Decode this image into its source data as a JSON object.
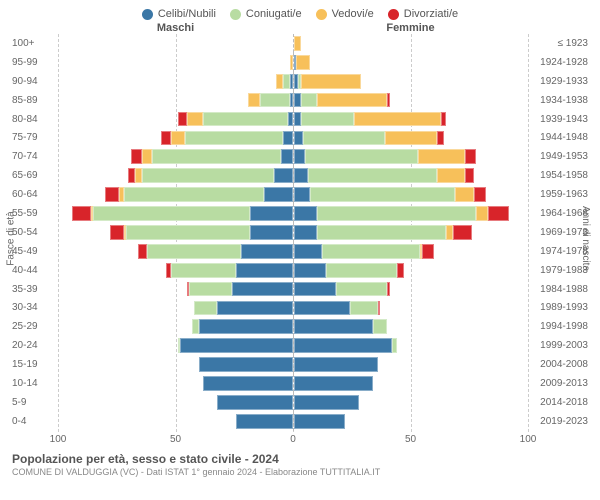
{
  "legend": [
    {
      "label": "Celibi/Nubili",
      "color": "#3b77a6"
    },
    {
      "label": "Coniugati/e",
      "color": "#b8dca2"
    },
    {
      "label": "Vedovi/e",
      "color": "#f7c05a"
    },
    {
      "label": "Divorziati/e",
      "color": "#d8242a"
    }
  ],
  "headers": {
    "male": "Maschi",
    "female": "Femmine"
  },
  "axis": {
    "left_label": "Fasce di età",
    "right_label": "Anni di nascita",
    "xmax": 100,
    "xticks": [
      100,
      50,
      0,
      50,
      100
    ]
  },
  "title": "Popolazione per età, sesso e stato civile - 2024",
  "subtitle": "COMUNE DI VALDUGGIA (VC) - Dati ISTAT 1° gennaio 2024 - Elaborazione TUTTITALIA.IT",
  "rows": [
    {
      "age": "100+",
      "birth": "≤ 1923",
      "m": {
        "c": 0,
        "co": 0,
        "v": 0,
        "d": 0
      },
      "f": {
        "c": 0,
        "co": 0,
        "v": 3,
        "d": 0
      }
    },
    {
      "age": "95-99",
      "birth": "1924-1928",
      "m": {
        "c": 0,
        "co": 0,
        "v": 1,
        "d": 0
      },
      "f": {
        "c": 1,
        "co": 0,
        "v": 6,
        "d": 0
      }
    },
    {
      "age": "90-94",
      "birth": "1929-1933",
      "m": {
        "c": 1,
        "co": 3,
        "v": 3,
        "d": 0
      },
      "f": {
        "c": 2,
        "co": 1,
        "v": 26,
        "d": 0
      }
    },
    {
      "age": "85-89",
      "birth": "1934-1938",
      "m": {
        "c": 1,
        "co": 13,
        "v": 5,
        "d": 0
      },
      "f": {
        "c": 3,
        "co": 7,
        "v": 30,
        "d": 1
      }
    },
    {
      "age": "80-84",
      "birth": "1939-1943",
      "m": {
        "c": 2,
        "co": 36,
        "v": 7,
        "d": 4
      },
      "f": {
        "c": 3,
        "co": 23,
        "v": 37,
        "d": 2
      }
    },
    {
      "age": "75-79",
      "birth": "1944-1948",
      "m": {
        "c": 4,
        "co": 42,
        "v": 6,
        "d": 4
      },
      "f": {
        "c": 4,
        "co": 35,
        "v": 22,
        "d": 3
      }
    },
    {
      "age": "70-74",
      "birth": "1949-1953",
      "m": {
        "c": 5,
        "co": 55,
        "v": 4,
        "d": 5
      },
      "f": {
        "c": 5,
        "co": 48,
        "v": 20,
        "d": 5
      }
    },
    {
      "age": "65-69",
      "birth": "1954-1958",
      "m": {
        "c": 8,
        "co": 56,
        "v": 3,
        "d": 3
      },
      "f": {
        "c": 6,
        "co": 55,
        "v": 12,
        "d": 4
      }
    },
    {
      "age": "60-64",
      "birth": "1959-1963",
      "m": {
        "c": 12,
        "co": 60,
        "v": 2,
        "d": 6
      },
      "f": {
        "c": 7,
        "co": 62,
        "v": 8,
        "d": 5
      }
    },
    {
      "age": "55-59",
      "birth": "1964-1968",
      "m": {
        "c": 18,
        "co": 67,
        "v": 1,
        "d": 8
      },
      "f": {
        "c": 10,
        "co": 68,
        "v": 5,
        "d": 9
      }
    },
    {
      "age": "50-54",
      "birth": "1969-1973",
      "m": {
        "c": 18,
        "co": 53,
        "v": 1,
        "d": 6
      },
      "f": {
        "c": 10,
        "co": 55,
        "v": 3,
        "d": 8
      }
    },
    {
      "age": "45-49",
      "birth": "1974-1978",
      "m": {
        "c": 22,
        "co": 40,
        "v": 0,
        "d": 4
      },
      "f": {
        "c": 12,
        "co": 42,
        "v": 1,
        "d": 5
      }
    },
    {
      "age": "40-44",
      "birth": "1979-1983",
      "m": {
        "c": 24,
        "co": 28,
        "v": 0,
        "d": 2
      },
      "f": {
        "c": 14,
        "co": 30,
        "v": 0,
        "d": 3
      }
    },
    {
      "age": "35-39",
      "birth": "1984-1988",
      "m": {
        "c": 26,
        "co": 18,
        "v": 0,
        "d": 1
      },
      "f": {
        "c": 18,
        "co": 22,
        "v": 0,
        "d": 1
      }
    },
    {
      "age": "30-34",
      "birth": "1989-1993",
      "m": {
        "c": 32,
        "co": 10,
        "v": 0,
        "d": 0
      },
      "f": {
        "c": 24,
        "co": 12,
        "v": 0,
        "d": 1
      }
    },
    {
      "age": "25-29",
      "birth": "1994-1998",
      "m": {
        "c": 40,
        "co": 3,
        "v": 0,
        "d": 0
      },
      "f": {
        "c": 34,
        "co": 6,
        "v": 0,
        "d": 0
      }
    },
    {
      "age": "20-24",
      "birth": "1999-2003",
      "m": {
        "c": 48,
        "co": 1,
        "v": 0,
        "d": 0
      },
      "f": {
        "c": 42,
        "co": 2,
        "v": 0,
        "d": 0
      }
    },
    {
      "age": "15-19",
      "birth": "2004-2008",
      "m": {
        "c": 40,
        "co": 0,
        "v": 0,
        "d": 0
      },
      "f": {
        "c": 36,
        "co": 0,
        "v": 0,
        "d": 0
      }
    },
    {
      "age": "10-14",
      "birth": "2009-2013",
      "m": {
        "c": 38,
        "co": 0,
        "v": 0,
        "d": 0
      },
      "f": {
        "c": 34,
        "co": 0,
        "v": 0,
        "d": 0
      }
    },
    {
      "age": "5-9",
      "birth": "2014-2018",
      "m": {
        "c": 32,
        "co": 0,
        "v": 0,
        "d": 0
      },
      "f": {
        "c": 28,
        "co": 0,
        "v": 0,
        "d": 0
      }
    },
    {
      "age": "0-4",
      "birth": "2019-2023",
      "m": {
        "c": 24,
        "co": 0,
        "v": 0,
        "d": 0
      },
      "f": {
        "c": 22,
        "co": 0,
        "v": 0,
        "d": 0
      }
    }
  ],
  "colors": {
    "celibi": "#3b77a6",
    "coniugati": "#b8dca2",
    "vedovi": "#f7c05a",
    "divorziati": "#d8242a",
    "grid": "#cccccc",
    "background": "#ffffff"
  }
}
